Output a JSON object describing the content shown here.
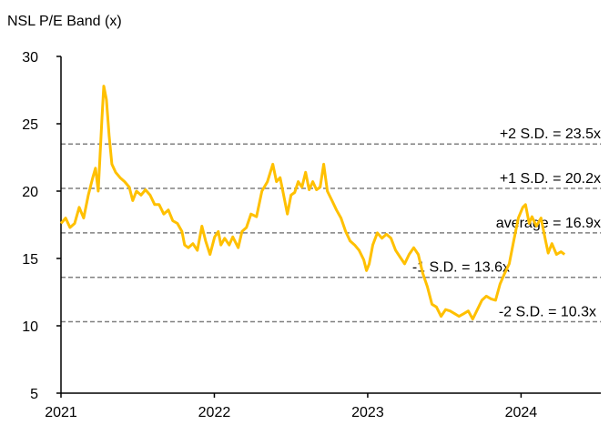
{
  "chart_data": {
    "type": "line",
    "title": "NSL P/E Band (x)",
    "x": [
      2021.0,
      2021.03,
      2021.059,
      2021.089,
      2021.119,
      2021.148,
      2021.178,
      2021.207,
      2021.225,
      2021.243,
      2021.267,
      2021.279,
      2021.296,
      2021.314,
      2021.332,
      2021.356,
      2021.385,
      2021.415,
      2021.445,
      2021.468,
      2021.492,
      2021.522,
      2021.551,
      2021.581,
      2021.611,
      2021.64,
      2021.67,
      2021.7,
      2021.729,
      2021.759,
      2021.789,
      2021.806,
      2021.83,
      2021.86,
      2021.889,
      2021.919,
      2021.943,
      2021.972,
      2022.002,
      2022.026,
      2022.043,
      2022.067,
      2022.097,
      2022.12,
      2022.156,
      2022.18,
      2022.209,
      2022.239,
      2022.275,
      2022.31,
      2022.346,
      2022.381,
      2022.405,
      2022.429,
      2022.452,
      2022.476,
      2022.5,
      2022.524,
      2022.547,
      2022.571,
      2022.595,
      2022.618,
      2022.642,
      2022.666,
      2022.69,
      2022.713,
      2022.737,
      2022.767,
      2022.796,
      2022.826,
      2022.856,
      2022.885,
      2022.915,
      2022.944,
      2022.974,
      2022.992,
      2023.01,
      2023.033,
      2023.063,
      2023.093,
      2023.122,
      2023.152,
      2023.182,
      2023.211,
      2023.241,
      2023.27,
      2023.3,
      2023.33,
      2023.359,
      2023.389,
      2023.419,
      2023.448,
      2023.478,
      2023.508,
      2023.537,
      2023.567,
      2023.596,
      2023.626,
      2023.656,
      2023.685,
      2023.715,
      2023.745,
      2023.774,
      2023.804,
      2023.834,
      2023.863,
      2023.893,
      2023.923,
      2023.952,
      2023.982,
      2024.011,
      2024.029,
      2024.053,
      2024.071,
      2024.1,
      2024.13,
      2024.16,
      2024.177,
      2024.201,
      2024.231,
      2024.26,
      2024.284
    ],
    "series": [
      {
        "name": "NSL P/E",
        "color": "#ffc000",
        "values": [
          17.6,
          18.0,
          17.3,
          17.6,
          18.8,
          18.0,
          19.7,
          21.0,
          21.7,
          20.0,
          25.4,
          27.8,
          26.8,
          24.1,
          22.0,
          21.4,
          21.0,
          20.7,
          20.3,
          19.3,
          20.0,
          19.7,
          20.1,
          19.7,
          19.0,
          19.0,
          18.3,
          18.6,
          17.8,
          17.6,
          17.0,
          16.0,
          15.8,
          16.1,
          15.6,
          17.4,
          16.3,
          15.3,
          16.6,
          17.0,
          16.0,
          16.5,
          16.0,
          16.6,
          15.8,
          17.0,
          17.3,
          18.3,
          18.1,
          20.0,
          20.7,
          22.0,
          20.7,
          21.0,
          19.7,
          18.3,
          19.7,
          19.9,
          20.7,
          20.3,
          21.4,
          20.1,
          20.7,
          20.1,
          20.3,
          22.0,
          20.0,
          19.3,
          18.6,
          18.0,
          17.0,
          16.3,
          16.0,
          15.6,
          14.9,
          14.1,
          14.6,
          16.0,
          16.9,
          16.5,
          16.8,
          16.5,
          15.6,
          15.1,
          14.6,
          15.3,
          15.8,
          15.3,
          13.9,
          12.9,
          11.6,
          11.4,
          10.7,
          11.2,
          11.1,
          10.9,
          10.7,
          10.9,
          11.1,
          10.5,
          11.2,
          11.9,
          12.2,
          12.0,
          11.9,
          13.1,
          13.9,
          14.6,
          16.3,
          18.0,
          18.8,
          19.0,
          17.6,
          18.1,
          17.4,
          18.0,
          16.3,
          15.4,
          16.1,
          15.3,
          15.5,
          15.3
        ]
      }
    ],
    "reference_lines": [
      {
        "value": 23.5,
        "label": "+2 S.D. = 23.5x"
      },
      {
        "value": 20.2,
        "label": "+1 S.D. = 20.2x"
      },
      {
        "value": 16.9,
        "label": "average = 16.9x"
      },
      {
        "value": 13.6,
        "label": "-1 S.D. = 13.6x"
      },
      {
        "value": 10.3,
        "label": "-2 S.D. = 10.3x"
      }
    ],
    "xlim": [
      2021,
      2024.52
    ],
    "xticks": [
      2021,
      2022,
      2023,
      2024
    ],
    "ylim": [
      5,
      30
    ],
    "yticks": [
      5,
      10,
      15,
      20,
      25,
      30
    ]
  }
}
